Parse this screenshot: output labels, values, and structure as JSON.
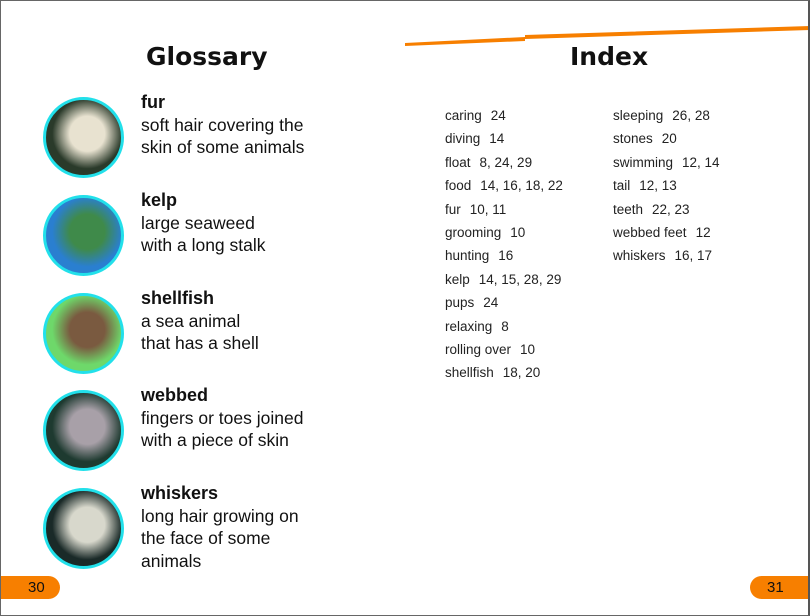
{
  "glossary": {
    "title": "Glossary",
    "entries": [
      {
        "word": "fur",
        "line1": "soft hair covering the",
        "line2": "skin of some animals",
        "line3": "",
        "image": "sea-otter-fur",
        "bg": "#2a3a2a",
        "fg": "#e8e2d0"
      },
      {
        "word": "kelp",
        "line1": "large seaweed",
        "line2": "with a long stalk",
        "line3": "",
        "image": "kelp-forest",
        "bg": "#2a7fd0",
        "fg": "#3f8a4a"
      },
      {
        "word": "shellfish",
        "line1": "a sea animal",
        "line2": "that has a shell",
        "line3": "",
        "image": "crab-on-rock",
        "bg": "#6ed86a",
        "fg": "#7a5a40"
      },
      {
        "word": "webbed",
        "line1": "fingers or toes joined",
        "line2": "with a piece of skin",
        "line3": "",
        "image": "otter-webbed-feet",
        "bg": "#1e3a30",
        "fg": "#a8a0a8"
      },
      {
        "word": "whiskers",
        "line1": "long hair growing on",
        "line2": "the face of some",
        "line3": "animals",
        "image": "otter-whiskers",
        "bg": "#1a2a28",
        "fg": "#d8d8cc"
      }
    ]
  },
  "index": {
    "title": "Index",
    "col1": [
      [
        "caring",
        "24"
      ],
      [
        "diving",
        "14"
      ],
      [
        "float",
        "8, 24, 29"
      ],
      [
        "food",
        "14, 16, 18, 22"
      ],
      [
        "fur",
        "10, 11"
      ],
      [
        "grooming",
        "10"
      ],
      [
        "hunting",
        "16"
      ],
      [
        "kelp",
        "14, 15, 28, 29"
      ],
      [
        "pups",
        "24"
      ],
      [
        "relaxing",
        "8"
      ],
      [
        "rolling over",
        "10"
      ],
      [
        "shellfish",
        "18, 20"
      ]
    ],
    "col2": [
      [
        "sleeping",
        "26, 28"
      ],
      [
        "stones",
        "20"
      ],
      [
        "swimming",
        "12, 14"
      ],
      [
        "tail",
        "12, 13"
      ],
      [
        "teeth",
        "22, 23"
      ],
      [
        "webbed feet",
        "12"
      ],
      [
        "whiskers",
        "16, 17"
      ]
    ]
  },
  "pages": {
    "left": "30",
    "right": "31"
  },
  "colors": {
    "accent": "#f77f00",
    "circle_border": "#22e0ea"
  }
}
